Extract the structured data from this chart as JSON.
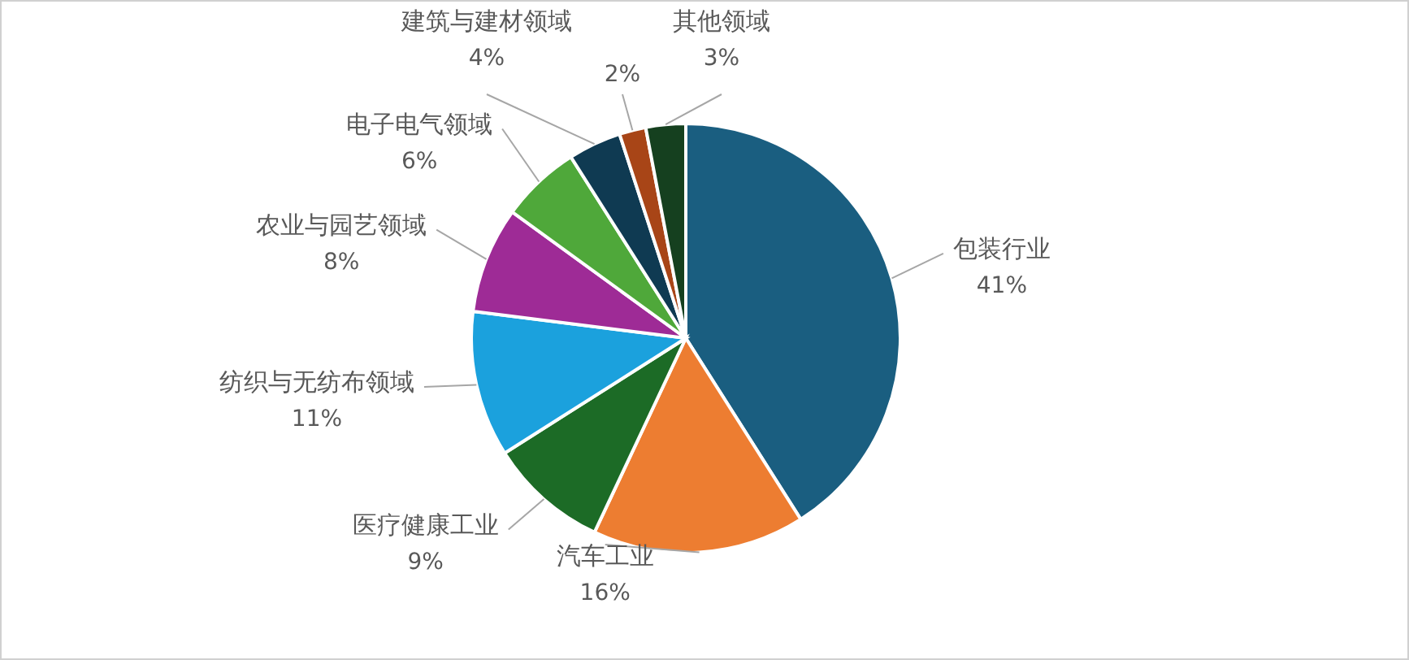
{
  "chart_data": {
    "type": "pie",
    "categories": [
      "包装行业",
      "汽车工业",
      "医疗健康工业",
      "纺织与无纺布领域",
      "农业与园艺领域",
      "电子电气领域",
      "建筑与建材领域",
      null,
      "其他领域"
    ],
    "values": [
      41,
      16,
      9,
      11,
      8,
      6,
      4,
      2,
      3
    ],
    "colors": [
      "#1a5e80",
      "#ed7d31",
      "#1c6b26",
      "#1ba1dd",
      "#9e2b96",
      "#4fa83a",
      "#0f3a52",
      "#a84517",
      "#15401f"
    ],
    "value_labels": [
      "41%",
      "16%",
      "9%",
      "11%",
      "8%",
      "6%",
      "4%",
      "2%",
      "3%"
    ],
    "legend": false
  }
}
